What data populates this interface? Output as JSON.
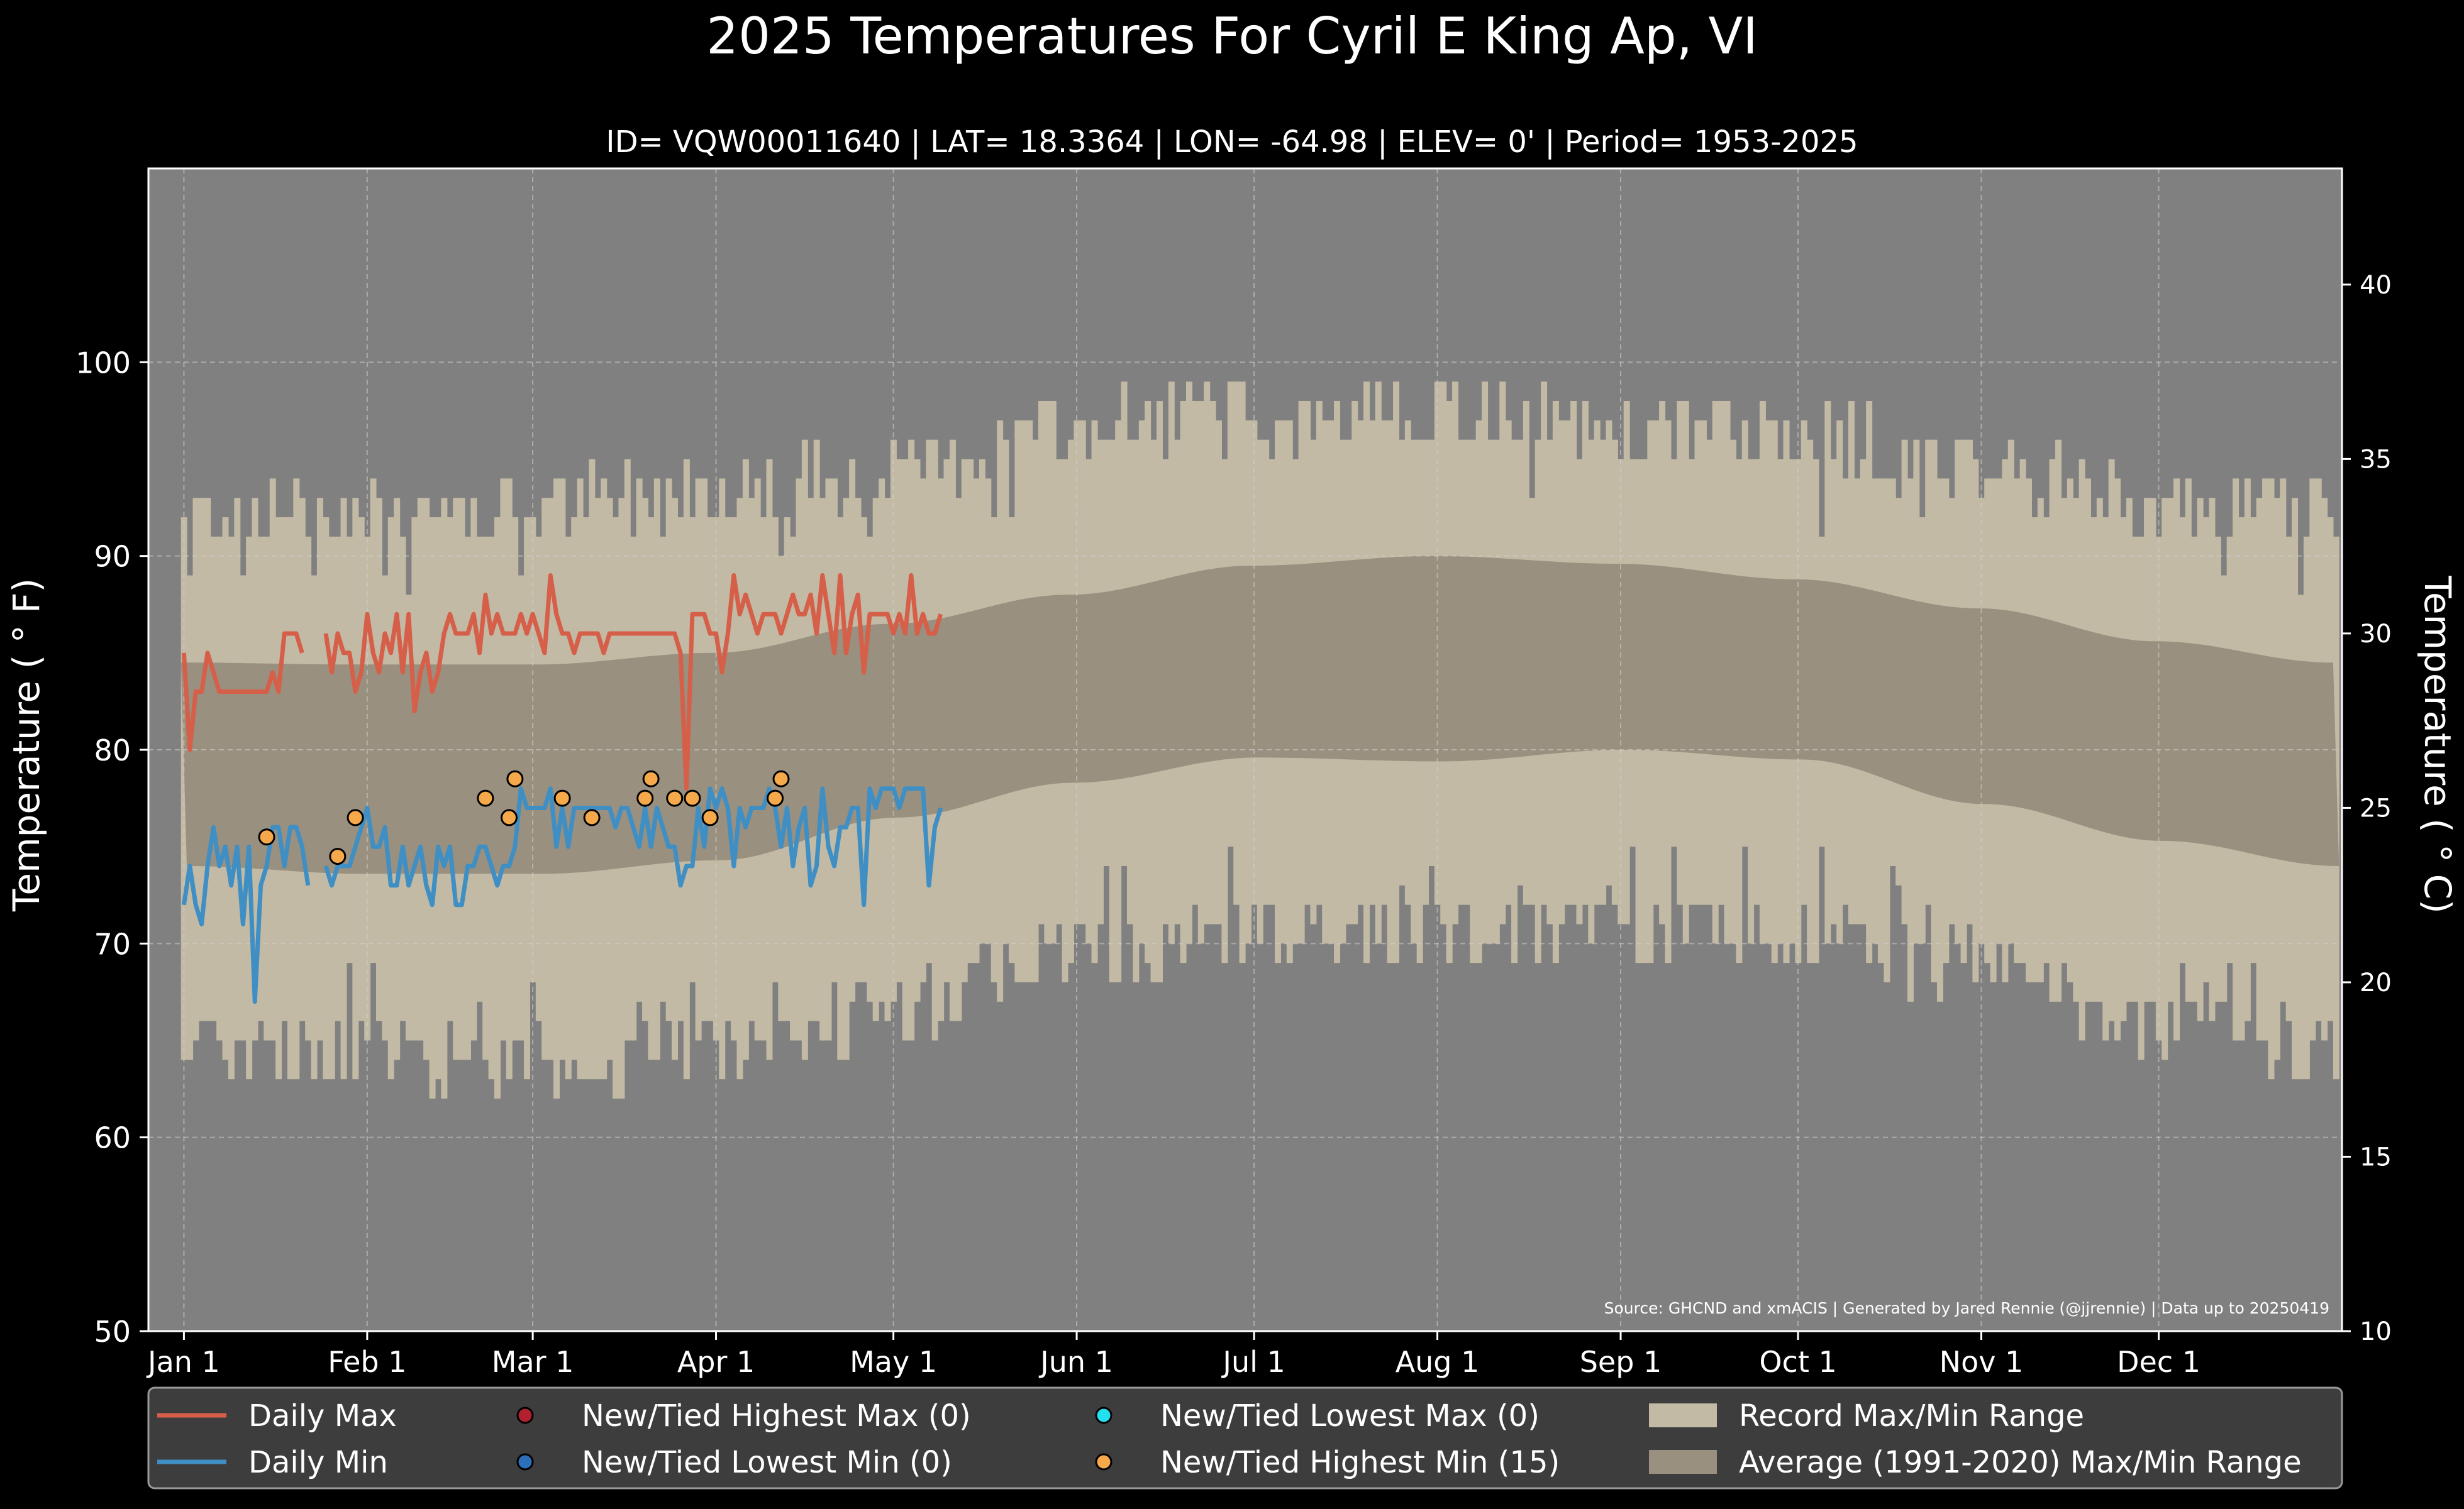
{
  "chart_data": {
    "type": "line",
    "title": "2025 Temperatures For Cyril E King Ap, VI",
    "subtitle": "ID= VQW00011640 | LAT= 18.3364 | LON= -64.98 | ELEV= 0' | Period= 1953-2025",
    "ylabel": "Temperature ($^\\circ$F)",
    "ylabel_display": "Temperature ( ° F)",
    "ylabel_right": "Temperature ( ° C)",
    "ylim": [
      50,
      110
    ],
    "ylim_right": [
      10,
      43.33
    ],
    "yticks": [
      50,
      60,
      70,
      80,
      90,
      100
    ],
    "yticks_right": [
      10,
      15,
      20,
      25,
      30,
      35,
      40
    ],
    "xlim": [
      -6,
      365
    ],
    "x_tick_labels": [
      "Jan 1",
      "Feb 1",
      "Mar 1",
      "Apr 1",
      "May 1",
      "Jun 1",
      "Jul 1",
      "Aug 1",
      "Sep 1",
      "Oct 1",
      "Nov 1",
      "Dec 1"
    ],
    "x_tick_days": [
      0,
      31,
      59,
      90,
      120,
      151,
      181,
      212,
      243,
      273,
      304,
      334
    ],
    "source_text": "Source: GHCND and xmACIS | Generated by Jared Rennie (@jjrennie) | Data up to 20250419",
    "grid": true,
    "legend": {
      "placement": "bottom",
      "items": [
        {
          "label": "Daily Max",
          "kind": "line",
          "color": "#d65f4a"
        },
        {
          "label": "Daily Min",
          "kind": "line",
          "color": "#3f8fc4"
        },
        {
          "label": "New/Tied Highest Max (0)",
          "kind": "dot",
          "color": "#b0202e"
        },
        {
          "label": "New/Tied Lowest Min (0)",
          "kind": "dot",
          "color": "#2d6fb8"
        },
        {
          "label": "New/Tied Lowest Max (0)",
          "kind": "dot",
          "color": "#22e0ee"
        },
        {
          "label": "New/Tied Highest Min (15)",
          "kind": "dot",
          "color": "#f5a94a"
        },
        {
          "label": "Record Max/Min Range",
          "kind": "patch",
          "color": "#c2baa4"
        },
        {
          "label": "Average (1991-2020) Max/Min Range",
          "kind": "patch",
          "color": "#99907f"
        }
      ]
    },
    "series": [
      {
        "name": "Daily Max",
        "start_day": 0,
        "values": [
          85,
          80,
          83,
          83,
          85,
          84,
          83,
          83,
          83,
          83,
          83,
          83,
          83,
          83,
          83,
          84,
          83,
          86,
          86,
          86,
          85,
          null,
          null,
          null,
          86,
          84,
          86,
          85,
          85,
          83,
          84,
          87,
          85,
          84,
          86,
          85,
          87,
          84,
          87,
          82,
          84,
          85,
          83,
          84,
          86,
          87,
          86,
          86,
          86,
          87,
          85,
          88,
          86,
          87,
          86,
          86,
          86,
          87,
          86,
          87,
          86,
          85,
          89,
          87,
          86,
          86,
          85,
          86,
          86,
          86,
          86,
          85,
          86,
          86,
          86,
          86,
          86,
          86,
          86,
          86,
          86,
          86,
          86,
          86,
          85,
          78,
          87,
          87,
          87,
          86,
          86,
          84,
          86,
          89,
          87,
          88,
          87,
          86,
          87,
          87,
          87,
          86,
          87,
          88,
          87,
          87,
          88,
          86,
          89,
          87,
          85,
          89,
          85,
          87,
          88,
          84,
          87,
          87,
          87,
          87,
          86,
          87,
          86,
          89,
          86,
          87,
          86,
          86,
          87
        ]
      },
      {
        "name": "Daily Min",
        "start_day": 0,
        "values": [
          72,
          74,
          72,
          71,
          74,
          76,
          74,
          75,
          73,
          75,
          71,
          75,
          67,
          73,
          74,
          76,
          76,
          74,
          76,
          76,
          75,
          73,
          null,
          null,
          74,
          73,
          74,
          74,
          74,
          75,
          76,
          77,
          75,
          75,
          76,
          73,
          73,
          75,
          73,
          74,
          75,
          73,
          72,
          75,
          74,
          75,
          72,
          72,
          74,
          74,
          75,
          75,
          74,
          73,
          74,
          74,
          75,
          78,
          77,
          77,
          77,
          77,
          78,
          75,
          77,
          75,
          77,
          77,
          77,
          77,
          77,
          77,
          77,
          76,
          77,
          77,
          76,
          75,
          77,
          75,
          77,
          76,
          75,
          75,
          73,
          74,
          74,
          77,
          75,
          78,
          77,
          78,
          77,
          74,
          77,
          76,
          77,
          77,
          77,
          78,
          77,
          75,
          77,
          74,
          76,
          77,
          73,
          74,
          78,
          75,
          74,
          76,
          76,
          77,
          77,
          72,
          78,
          77,
          78,
          78,
          78,
          77,
          78,
          78,
          78,
          78,
          73,
          76,
          77
        ]
      }
    ],
    "record_highest_min_points": [
      {
        "date": "Jan 15",
        "value": 75.5
      },
      {
        "date": "Jan 27",
        "value": 74.5
      },
      {
        "date": "Jan 30",
        "value": 76.5
      },
      {
        "date": "Feb 21",
        "value": 77.5
      },
      {
        "date": "Feb 25",
        "value": 76.5
      },
      {
        "date": "Feb 26",
        "value": 78.5
      },
      {
        "date": "Mar 6",
        "value": 77.5
      },
      {
        "date": "Mar 11",
        "value": 76.5
      },
      {
        "date": "Mar 20",
        "value": 77.5
      },
      {
        "date": "Mar 21",
        "value": 78.5
      },
      {
        "date": "Mar 25",
        "value": 77.5
      },
      {
        "date": "Mar 28",
        "value": 77.5
      },
      {
        "date": "Mar 31",
        "value": 76.5
      },
      {
        "date": "Apr 11",
        "value": 77.5
      },
      {
        "date": "Apr 12",
        "value": 78.5
      }
    ],
    "average_max_curve": {
      "days": [
        0,
        30,
        60,
        90,
        120,
        150,
        181,
        212,
        243,
        273,
        304,
        334,
        364
      ],
      "values": [
        84.5,
        84.4,
        84.4,
        85.0,
        86.5,
        88.0,
        89.5,
        90.0,
        89.6,
        88.8,
        87.3,
        85.6,
        84.5
      ]
    },
    "average_min_curve": {
      "days": [
        0,
        30,
        60,
        90,
        120,
        150,
        181,
        212,
        243,
        273,
        304,
        334,
        364
      ],
      "values": [
        74.0,
        73.6,
        73.6,
        74.3,
        76.5,
        78.3,
        79.6,
        79.4,
        80.0,
        79.5,
        77.2,
        75.3,
        74.0
      ]
    },
    "record_max_monthly": {
      "days": [
        0,
        30,
        60,
        90,
        120,
        150,
        181,
        212,
        243,
        273,
        304,
        334,
        364
      ],
      "values": [
        92,
        92,
        92,
        93,
        94,
        96,
        97,
        97,
        96,
        96,
        94,
        92,
        92
      ]
    },
    "record_min_monthly": {
      "days": [
        0,
        30,
        60,
        90,
        120,
        150,
        181,
        212,
        243,
        273,
        304,
        334,
        364
      ],
      "values": [
        65,
        65,
        64,
        65,
        67,
        70,
        71,
        71,
        71,
        71,
        69,
        66,
        65
      ]
    }
  }
}
